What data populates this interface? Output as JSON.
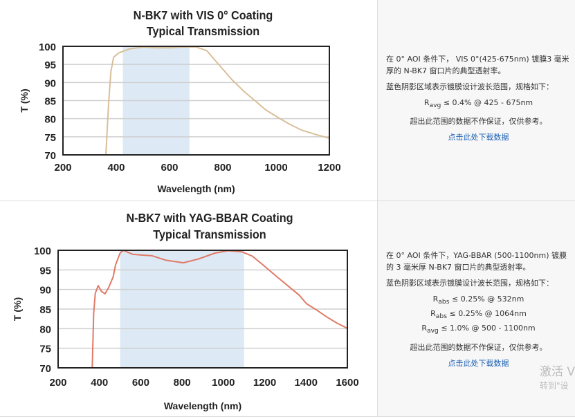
{
  "charts": [
    {
      "title": "N-BK7 with VIS 0° Coating",
      "subtitle": "Typical Transmission",
      "description": {
        "line1": "在 0° AOI 条件下， VIS 0°(425-675nm) 镀膜3 毫米",
        "line2": "厚的 N-BK7 窗口片的典型透射率。",
        "shading_note": "蓝色阴影区域表示镀膜设计波长范围，规格如下：",
        "specs": [
          {
            "sym": "R",
            "sub": "avg",
            "text": " ≤ 0.4% @ 425 - 675nm"
          }
        ],
        "disclaimer": "超出此范围的数据不作保证，仅供参考。",
        "download_link": "点击此处下载数据"
      },
      "chart_data": {
        "type": "line",
        "xlabel": "Wavelength (nm)",
        "ylabel": "T (%)",
        "xlim": [
          200,
          1200
        ],
        "ylim": [
          70,
          100
        ],
        "xticks": [
          200,
          400,
          600,
          800,
          1000,
          1200
        ],
        "yticks": [
          70,
          75,
          80,
          85,
          90,
          95,
          100
        ],
        "grid": "horizontal",
        "shaded_band": [
          425,
          675
        ],
        "colors": {
          "line": "#d9bf98",
          "band": "#dde9f4"
        },
        "x": [
          361,
          372,
          380,
          390,
          410,
          425,
          450,
          500,
          550,
          600,
          650,
          700,
          740,
          782,
          834,
          880,
          919,
          960,
          1008,
          1050,
          1094,
          1150,
          1200
        ],
        "y": [
          70,
          85,
          93,
          97,
          98.2,
          98.6,
          99.3,
          99.8,
          99.6,
          99.6,
          99.8,
          99.8,
          98.8,
          95.2,
          90.8,
          87.5,
          85.1,
          82.5,
          80.3,
          78.5,
          76.9,
          75.6,
          74.6
        ]
      }
    },
    {
      "title": "N-BK7 with YAG-BBAR Coating",
      "subtitle": "Typical Transmission",
      "description": {
        "line1": "在 0° AOI 条件下，YAG-BBAR (500-1100nm) 镀膜",
        "line2": "的 3 毫米厚 N-BK7 窗口片的典型透射率。",
        "shading_note": "蓝色阴影区域表示镀膜设计波长范围，规格如下：",
        "specs": [
          {
            "sym": "R",
            "sub": "abs",
            "text": " ≤ 0.25% @ 532nm"
          },
          {
            "sym": "R",
            "sub": "abs",
            "text": " ≤ 0.25% @ 1064nm"
          },
          {
            "sym": "R",
            "sub": "avg",
            "text": " ≤ 1.0% @ 500 - 1100nm"
          }
        ],
        "disclaimer": "超出此范围的数据不作保证，仅供参考。",
        "download_link": "点击此处下载数据"
      },
      "chart_data": {
        "type": "line",
        "xlabel": "Wavelength (nm)",
        "ylabel": "T (%)",
        "xlim": [
          200,
          1600
        ],
        "ylim": [
          70,
          100
        ],
        "xticks": [
          200,
          400,
          600,
          800,
          1000,
          1200,
          1400,
          1600
        ],
        "yticks": [
          70,
          75,
          80,
          85,
          90,
          95,
          100
        ],
        "grid": "horizontal",
        "shaded_band": [
          500,
          1100
        ],
        "colors": {
          "line": "#e07a68",
          "band": "#dde9f4"
        },
        "x": [
          365,
          372,
          380,
          394,
          410,
          427,
          445,
          467,
          478,
          500,
          515,
          560,
          598,
          655,
          720,
          806,
          880,
          960,
          1023,
          1091,
          1140,
          1191,
          1260,
          1320,
          1368,
          1402,
          1450,
          1500,
          1550,
          1600
        ],
        "y": [
          70,
          84,
          89,
          91,
          89.5,
          88.9,
          90.5,
          93.3,
          96.3,
          99.3,
          100,
          99,
          98.8,
          98.6,
          97.5,
          96.8,
          97.8,
          99.3,
          99.9,
          99.6,
          98.5,
          96.3,
          93.2,
          90.6,
          88.5,
          86.4,
          84.8,
          83,
          81.4,
          80.1
        ]
      }
    }
  ],
  "watermark": {
    "line1": "激活 V",
    "line2": "转到\"设"
  }
}
